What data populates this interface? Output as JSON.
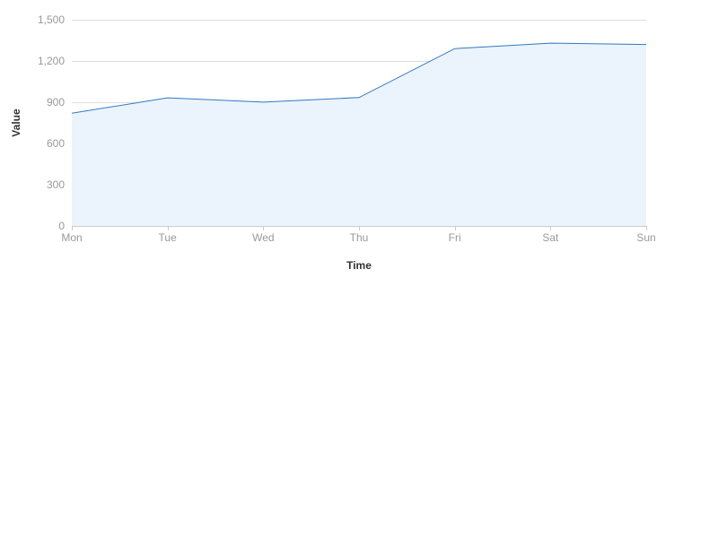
{
  "chart_data": {
    "type": "area",
    "title": "",
    "xlabel": "Time",
    "ylabel": "Value",
    "categories": [
      "Mon",
      "Tue",
      "Wed",
      "Thu",
      "Fri",
      "Sat",
      "Sun"
    ],
    "series": [
      {
        "values": [
          820,
          932,
          901,
          934,
          1290,
          1330,
          1320
        ]
      }
    ],
    "ylim": [
      0,
      1500
    ],
    "yticks": [
      0,
      300,
      600,
      900,
      1200,
      1500
    ],
    "ytick_labels": [
      "0",
      "300",
      "600",
      "900",
      "1,200",
      "1,500"
    ],
    "grid": true,
    "colors": {
      "line": "#2f7ac4",
      "area": "#ebf3fc",
      "grid": "#dcdcdc",
      "axis": "#cccccc",
      "tick_text": "#999999",
      "axis_title": "#333333"
    }
  }
}
